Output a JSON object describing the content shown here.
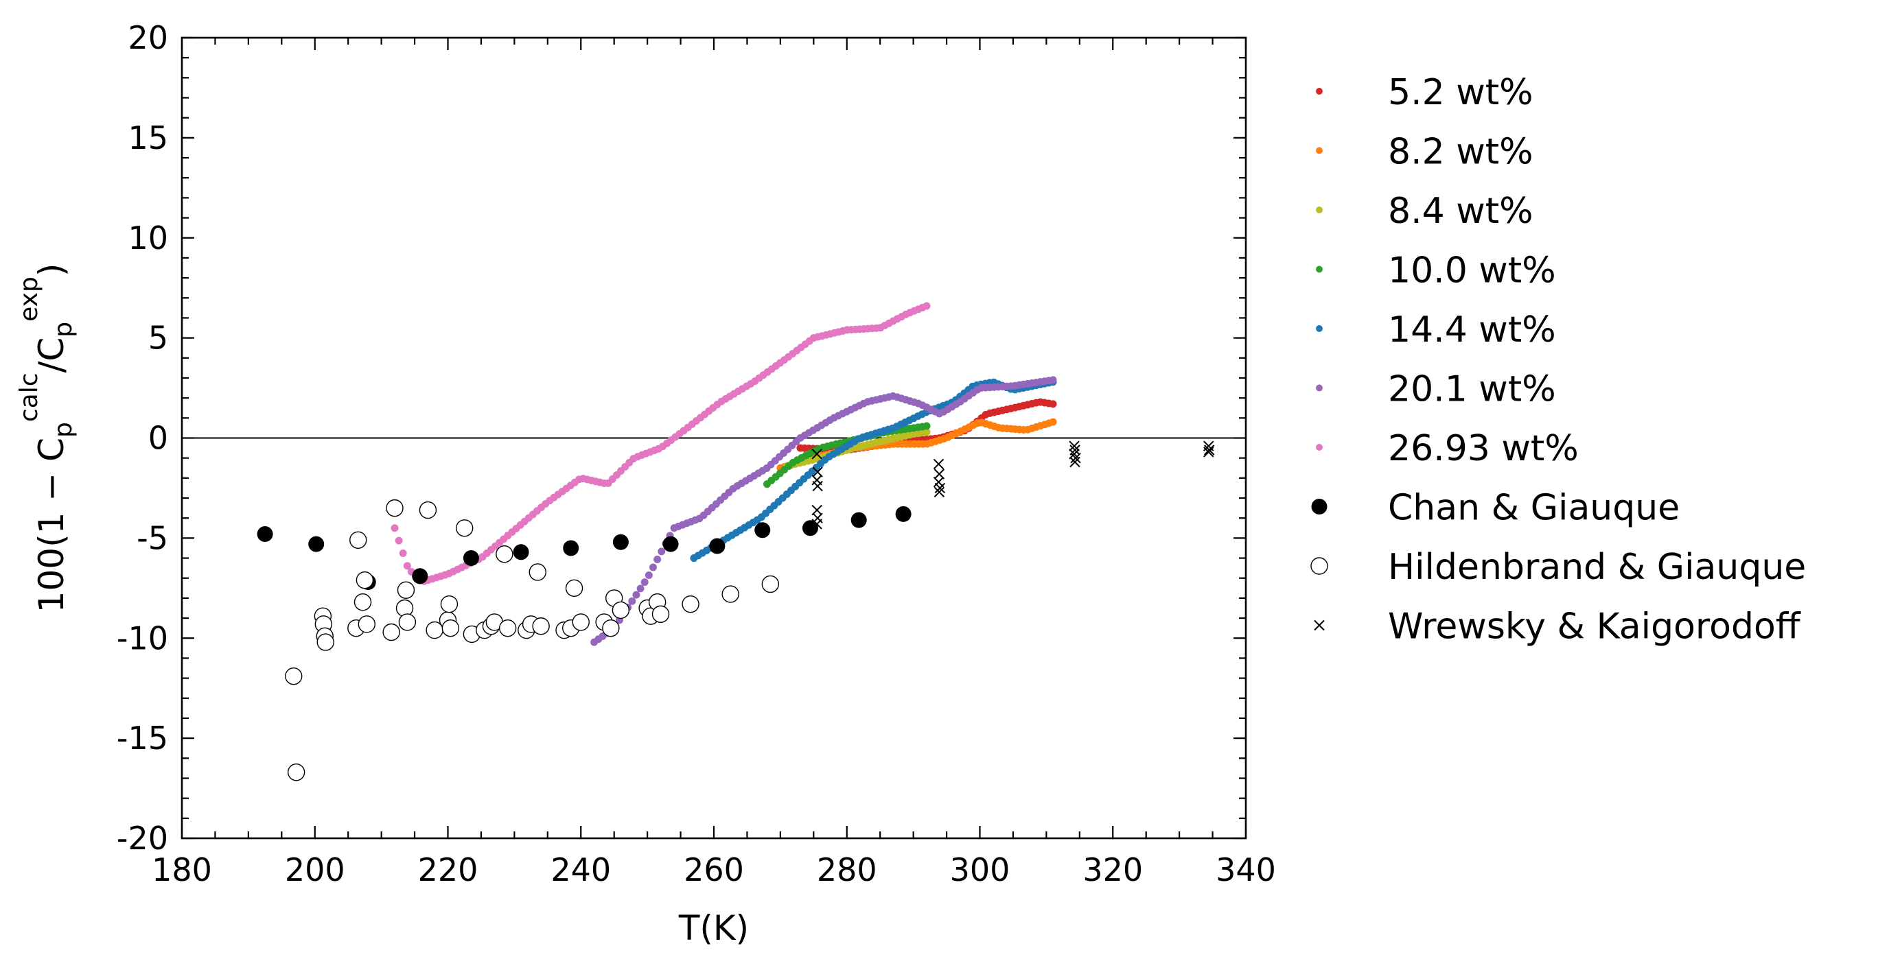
{
  "chart_data": {
    "type": "scatter",
    "xlabel": "T(K)",
    "ylabel": {
      "prefix": "100(1 − C",
      "sub1": "p",
      "sup1": "calc",
      "mid": "/C",
      "sub2": "p",
      "sup2": "exp",
      "suffix": ")"
    },
    "xlim": [
      180,
      340
    ],
    "ylim": [
      -20,
      20
    ],
    "xticks": [
      180,
      200,
      220,
      240,
      260,
      280,
      300,
      320,
      340
    ],
    "yticks": [
      -20,
      -15,
      -10,
      -5,
      0,
      5,
      10,
      15,
      20
    ],
    "xtick_labels": [
      "180",
      "200",
      "220",
      "240",
      "260",
      "280",
      "300",
      "320",
      "340"
    ],
    "ytick_labels": [
      "-20",
      "-15",
      "-10",
      "-5",
      "0",
      "5",
      "10",
      "15",
      "20"
    ],
    "grid": false,
    "reference_line_y": 0,
    "legend_placement": "outside-right",
    "series": [
      {
        "name": "5.2 wt%",
        "color": "#d62728",
        "marker": "small-dot",
        "knots": [
          [
            273,
            -0.5
          ],
          [
            280,
            -0.6
          ],
          [
            286,
            -0.3
          ],
          [
            291,
            -0.1
          ],
          [
            294,
            0.0
          ],
          [
            298,
            0.4
          ],
          [
            301,
            1.2
          ],
          [
            305,
            1.5
          ],
          [
            309,
            1.8
          ],
          [
            311,
            1.7
          ]
        ]
      },
      {
        "name": "8.2 wt%",
        "color": "#ff7f0e",
        "marker": "small-dot",
        "knots": [
          [
            270,
            -1.5
          ],
          [
            275,
            -1.0
          ],
          [
            281,
            -0.5
          ],
          [
            287,
            -0.3
          ],
          [
            292,
            -0.3
          ],
          [
            295,
            0.0
          ],
          [
            300,
            0.8
          ],
          [
            303,
            0.5
          ],
          [
            307,
            0.4
          ],
          [
            311,
            0.8
          ]
        ]
      },
      {
        "name": "8.4 wt%",
        "color": "#bcbd22",
        "marker": "small-dot",
        "knots": [
          [
            271,
            -1.4
          ],
          [
            276,
            -1.0
          ],
          [
            281,
            -0.5
          ],
          [
            286,
            -0.1
          ],
          [
            290,
            0.2
          ],
          [
            292,
            0.3
          ]
        ]
      },
      {
        "name": "10.0 wt%",
        "color": "#2ca02c",
        "marker": "small-dot",
        "knots": [
          [
            268,
            -2.3
          ],
          [
            272,
            -1.2
          ],
          [
            276,
            -0.5
          ],
          [
            281,
            -0.1
          ],
          [
            286,
            0.3
          ],
          [
            292,
            0.6
          ]
        ]
      },
      {
        "name": "14.4 wt%",
        "color": "#1f77b4",
        "marker": "small-dot",
        "knots": [
          [
            257,
            -6.0
          ],
          [
            262,
            -5.0
          ],
          [
            267,
            -4.0
          ],
          [
            272,
            -2.5
          ],
          [
            277,
            -1.0
          ],
          [
            282,
            0.0
          ],
          [
            287,
            0.5
          ],
          [
            292,
            1.3
          ],
          [
            296,
            1.8
          ],
          [
            299,
            2.6
          ],
          [
            302,
            2.8
          ],
          [
            305,
            2.4
          ],
          [
            308,
            2.6
          ],
          [
            311,
            2.8
          ]
        ]
      },
      {
        "name": "20.1 wt%",
        "color": "#9467bd",
        "marker": "small-dot",
        "knots": [
          [
            242,
            -10.2
          ],
          [
            245,
            -9.5
          ],
          [
            250,
            -7.0
          ],
          [
            254,
            -4.5
          ],
          [
            258,
            -4.0
          ],
          [
            263,
            -2.5
          ],
          [
            268,
            -1.5
          ],
          [
            273,
            0.0
          ],
          [
            278,
            1.0
          ],
          [
            283,
            1.8
          ],
          [
            287,
            2.1
          ],
          [
            291,
            1.7
          ],
          [
            294,
            1.2
          ],
          [
            297,
            1.8
          ],
          [
            300,
            2.5
          ],
          [
            305,
            2.6
          ],
          [
            311,
            2.9
          ]
        ]
      },
      {
        "name": "26.93 wt%",
        "color": "#e377c2",
        "marker": "small-dot",
        "knots": [
          [
            212,
            -4.5
          ],
          [
            214,
            -6.5
          ],
          [
            216,
            -7.2
          ],
          [
            220,
            -6.8
          ],
          [
            225,
            -6.0
          ],
          [
            230,
            -4.6
          ],
          [
            235,
            -3.2
          ],
          [
            240,
            -2.0
          ],
          [
            244,
            -2.3
          ],
          [
            248,
            -1.0
          ],
          [
            252,
            -0.5
          ],
          [
            256,
            0.5
          ],
          [
            261,
            1.8
          ],
          [
            266,
            2.8
          ],
          [
            271,
            4.0
          ],
          [
            275,
            5.0
          ],
          [
            280,
            5.4
          ],
          [
            285,
            5.5
          ],
          [
            289,
            6.2
          ],
          [
            292,
            6.6
          ]
        ]
      },
      {
        "name": "Chan & Giauque",
        "color": "#000000",
        "marker": "filled-circle",
        "points": [
          [
            192.5,
            -4.8
          ],
          [
            200.2,
            -5.3
          ],
          [
            208.0,
            -7.2
          ],
          [
            215.8,
            -6.9
          ],
          [
            223.5,
            -6.0
          ],
          [
            231.0,
            -5.7
          ],
          [
            238.5,
            -5.5
          ],
          [
            246.0,
            -5.2
          ],
          [
            253.5,
            -5.3
          ],
          [
            260.5,
            -5.4
          ],
          [
            267.3,
            -4.6
          ],
          [
            274.5,
            -4.5
          ],
          [
            281.8,
            -4.1
          ],
          [
            288.5,
            -3.8
          ]
        ]
      },
      {
        "name": "Hildenbrand & Giauque",
        "color": "#000000",
        "marker": "open-circle",
        "points": [
          [
            196.8,
            -11.9
          ],
          [
            197.2,
            -16.7
          ],
          [
            201.2,
            -8.9
          ],
          [
            201.3,
            -9.3
          ],
          [
            201.5,
            -9.9
          ],
          [
            201.6,
            -10.2
          ],
          [
            206.2,
            -9.5
          ],
          [
            206.5,
            -5.1
          ],
          [
            207.2,
            -8.2
          ],
          [
            207.5,
            -7.1
          ],
          [
            207.8,
            -9.3
          ],
          [
            211.5,
            -9.7
          ],
          [
            212.0,
            -3.5
          ],
          [
            213.5,
            -8.5
          ],
          [
            213.7,
            -7.6
          ],
          [
            213.9,
            -9.2
          ],
          [
            217.0,
            -3.6
          ],
          [
            218.0,
            -9.6
          ],
          [
            220.0,
            -9.1
          ],
          [
            220.2,
            -8.3
          ],
          [
            220.4,
            -9.5
          ],
          [
            222.5,
            -4.5
          ],
          [
            223.6,
            -9.8
          ],
          [
            225.5,
            -9.6
          ],
          [
            226.5,
            -9.4
          ],
          [
            227.0,
            -9.2
          ],
          [
            228.5,
            -5.8
          ],
          [
            229.0,
            -9.5
          ],
          [
            231.8,
            -9.6
          ],
          [
            232.5,
            -9.3
          ],
          [
            233.5,
            -6.7
          ],
          [
            234.0,
            -9.4
          ],
          [
            237.5,
            -9.6
          ],
          [
            238.5,
            -9.5
          ],
          [
            239.0,
            -7.5
          ],
          [
            240.0,
            -9.2
          ],
          [
            243.5,
            -9.2
          ],
          [
            244.5,
            -9.5
          ],
          [
            245.0,
            -8.0
          ],
          [
            246.0,
            -8.6
          ],
          [
            250.0,
            -8.5
          ],
          [
            250.5,
            -8.9
          ],
          [
            251.5,
            -8.2
          ],
          [
            252.0,
            -8.8
          ],
          [
            256.5,
            -8.3
          ],
          [
            262.5,
            -7.8
          ],
          [
            268.5,
            -7.3
          ]
        ]
      },
      {
        "name": "Wrewsky & Kaigorodoff",
        "color": "#000000",
        "marker": "cross",
        "points": [
          [
            275.5,
            -0.8
          ],
          [
            275.6,
            -1.7
          ],
          [
            275.5,
            -2.1
          ],
          [
            275.6,
            -2.4
          ],
          [
            275.5,
            -3.6
          ],
          [
            275.6,
            -4.0
          ],
          [
            275.5,
            -4.3
          ],
          [
            293.8,
            -1.3
          ],
          [
            293.9,
            -1.8
          ],
          [
            293.8,
            -2.2
          ],
          [
            294.0,
            -2.5
          ],
          [
            293.9,
            -2.7
          ],
          [
            314.2,
            -0.4
          ],
          [
            314.3,
            -0.6
          ],
          [
            314.2,
            -0.8
          ],
          [
            314.4,
            -1.0
          ],
          [
            314.3,
            -1.2
          ],
          [
            334.4,
            -0.4
          ],
          [
            334.5,
            -0.6
          ],
          [
            334.4,
            -0.7
          ]
        ]
      }
    ]
  }
}
